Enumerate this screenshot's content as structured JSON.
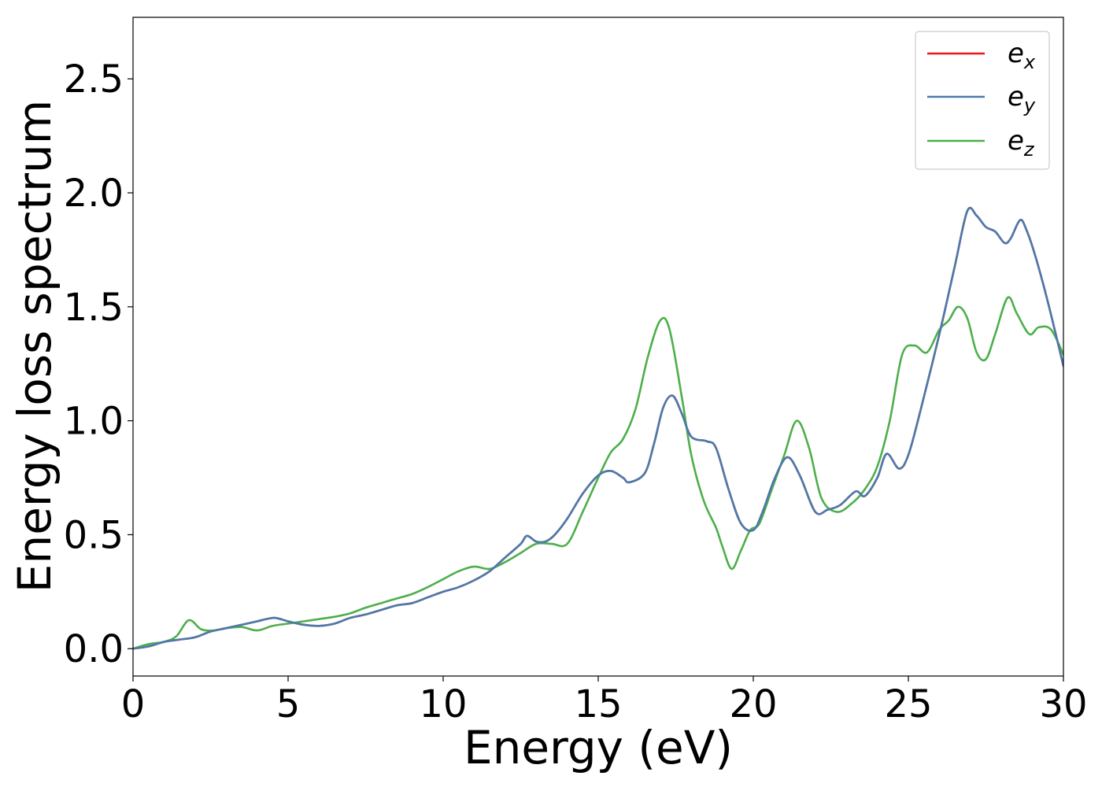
{
  "chart_data": {
    "type": "line",
    "title": "",
    "xlabel": "Energy (eV)",
    "ylabel": "Energy loss spectrum",
    "xlim": [
      0,
      30
    ],
    "ylim": [
      -0.12,
      2.77
    ],
    "xticks": [
      0,
      5,
      10,
      15,
      20,
      25,
      30
    ],
    "xtick_labels": [
      "0",
      "5",
      "10",
      "15",
      "20",
      "25",
      "30"
    ],
    "yticks": [
      0.0,
      0.5,
      1.0,
      1.5,
      2.0,
      2.5
    ],
    "ytick_labels": [
      "0.0",
      "0.5",
      "1.0",
      "1.5",
      "2.0",
      "2.5"
    ],
    "grid": false,
    "legend_position": "top-right",
    "series": [
      {
        "name": "e_x",
        "legend_base": "e",
        "legend_sub": "x",
        "color": "#e41a1c",
        "x": [
          0,
          0.5,
          1.0,
          1.5,
          2.0,
          2.5,
          3.0,
          3.5,
          4.0,
          4.3,
          4.6,
          5.0,
          5.5,
          6.0,
          6.5,
          7.0,
          7.5,
          8.0,
          8.5,
          9.0,
          9.5,
          10.0,
          10.5,
          11.0,
          11.5,
          12.0,
          12.5,
          12.7,
          13.0,
          13.3,
          13.6,
          14.0,
          14.5,
          15.0,
          15.4,
          15.8,
          16.0,
          16.5,
          16.8,
          17.1,
          17.4,
          17.7,
          18.0,
          18.5,
          18.8,
          19.2,
          19.6,
          20.0,
          20.3,
          20.7,
          21.1,
          21.5,
          22.0,
          22.4,
          22.8,
          23.3,
          23.6,
          24.0,
          24.3,
          24.7,
          25.0,
          25.4,
          26.0,
          26.5,
          26.9,
          27.2,
          27.5,
          27.8,
          28.1,
          28.3,
          28.6,
          28.8,
          29.1,
          29.5,
          30.0
        ],
        "y": [
          0.0,
          0.01,
          0.03,
          0.04,
          0.05,
          0.075,
          0.09,
          0.105,
          0.12,
          0.13,
          0.135,
          0.12,
          0.105,
          0.1,
          0.11,
          0.135,
          0.15,
          0.17,
          0.19,
          0.2,
          0.225,
          0.25,
          0.27,
          0.3,
          0.34,
          0.4,
          0.46,
          0.495,
          0.47,
          0.47,
          0.5,
          0.57,
          0.68,
          0.76,
          0.78,
          0.75,
          0.73,
          0.77,
          0.9,
          1.06,
          1.11,
          1.03,
          0.93,
          0.91,
          0.88,
          0.7,
          0.55,
          0.52,
          0.6,
          0.75,
          0.84,
          0.76,
          0.6,
          0.61,
          0.63,
          0.69,
          0.67,
          0.75,
          0.855,
          0.79,
          0.85,
          1.05,
          1.38,
          1.68,
          1.92,
          1.9,
          1.85,
          1.83,
          1.78,
          1.8,
          1.88,
          1.84,
          1.72,
          1.52,
          1.24
        ]
      },
      {
        "name": "e_y",
        "legend_base": "e",
        "legend_sub": "y",
        "color": "#4a7aac",
        "x": [
          0,
          0.5,
          1.0,
          1.5,
          2.0,
          2.5,
          3.0,
          3.5,
          4.0,
          4.3,
          4.6,
          5.0,
          5.5,
          6.0,
          6.5,
          7.0,
          7.5,
          8.0,
          8.5,
          9.0,
          9.5,
          10.0,
          10.5,
          11.0,
          11.5,
          12.0,
          12.5,
          12.7,
          13.0,
          13.3,
          13.6,
          14.0,
          14.5,
          15.0,
          15.4,
          15.8,
          16.0,
          16.5,
          16.8,
          17.1,
          17.4,
          17.7,
          18.0,
          18.5,
          18.8,
          19.2,
          19.6,
          20.0,
          20.3,
          20.7,
          21.1,
          21.5,
          22.0,
          22.4,
          22.8,
          23.3,
          23.6,
          24.0,
          24.3,
          24.7,
          25.0,
          25.4,
          26.0,
          26.5,
          26.9,
          27.2,
          27.5,
          27.8,
          28.1,
          28.3,
          28.6,
          28.8,
          29.1,
          29.5,
          30.0
        ],
        "y": [
          0.0,
          0.01,
          0.03,
          0.04,
          0.05,
          0.075,
          0.09,
          0.105,
          0.12,
          0.13,
          0.135,
          0.12,
          0.105,
          0.1,
          0.11,
          0.135,
          0.15,
          0.17,
          0.19,
          0.2,
          0.225,
          0.25,
          0.27,
          0.3,
          0.34,
          0.4,
          0.46,
          0.495,
          0.47,
          0.47,
          0.5,
          0.57,
          0.68,
          0.76,
          0.78,
          0.75,
          0.73,
          0.77,
          0.9,
          1.06,
          1.11,
          1.03,
          0.93,
          0.91,
          0.88,
          0.7,
          0.55,
          0.52,
          0.6,
          0.75,
          0.84,
          0.76,
          0.6,
          0.61,
          0.63,
          0.69,
          0.67,
          0.75,
          0.855,
          0.79,
          0.85,
          1.05,
          1.38,
          1.68,
          1.92,
          1.9,
          1.85,
          1.83,
          1.78,
          1.8,
          1.88,
          1.84,
          1.72,
          1.52,
          1.24
        ]
      },
      {
        "name": "e_z",
        "legend_base": "e",
        "legend_sub": "z",
        "color": "#4daf4a",
        "x": [
          0,
          0.5,
          1.0,
          1.4,
          1.8,
          2.2,
          2.6,
          3.0,
          3.5,
          4.0,
          4.5,
          5.0,
          5.5,
          6.0,
          6.5,
          7.0,
          7.5,
          8.0,
          8.5,
          9.0,
          9.5,
          10.0,
          10.5,
          11.0,
          11.5,
          12.0,
          12.5,
          13.0,
          13.5,
          14.0,
          14.5,
          15.0,
          15.4,
          15.8,
          16.2,
          16.6,
          17.0,
          17.3,
          17.7,
          18.0,
          18.4,
          18.8,
          19.0,
          19.3,
          19.6,
          19.9,
          20.2,
          20.6,
          21.0,
          21.4,
          21.8,
          22.2,
          22.7,
          23.2,
          23.6,
          24.0,
          24.4,
          24.8,
          25.2,
          25.6,
          26.0,
          26.3,
          26.6,
          26.9,
          27.2,
          27.5,
          27.8,
          28.2,
          28.5,
          28.9,
          29.2,
          29.6,
          30.0
        ],
        "y": [
          0.0,
          0.02,
          0.03,
          0.055,
          0.125,
          0.085,
          0.08,
          0.09,
          0.095,
          0.08,
          0.1,
          0.11,
          0.12,
          0.13,
          0.14,
          0.155,
          0.18,
          0.2,
          0.22,
          0.24,
          0.27,
          0.305,
          0.34,
          0.36,
          0.35,
          0.38,
          0.42,
          0.46,
          0.46,
          0.46,
          0.6,
          0.75,
          0.86,
          0.92,
          1.05,
          1.28,
          1.44,
          1.4,
          1.1,
          0.85,
          0.65,
          0.53,
          0.45,
          0.35,
          0.43,
          0.52,
          0.55,
          0.7,
          0.85,
          1.0,
          0.88,
          0.66,
          0.6,
          0.64,
          0.7,
          0.8,
          1.0,
          1.29,
          1.33,
          1.3,
          1.4,
          1.44,
          1.5,
          1.45,
          1.3,
          1.27,
          1.38,
          1.54,
          1.47,
          1.38,
          1.41,
          1.4,
          1.29
        ]
      }
    ]
  }
}
